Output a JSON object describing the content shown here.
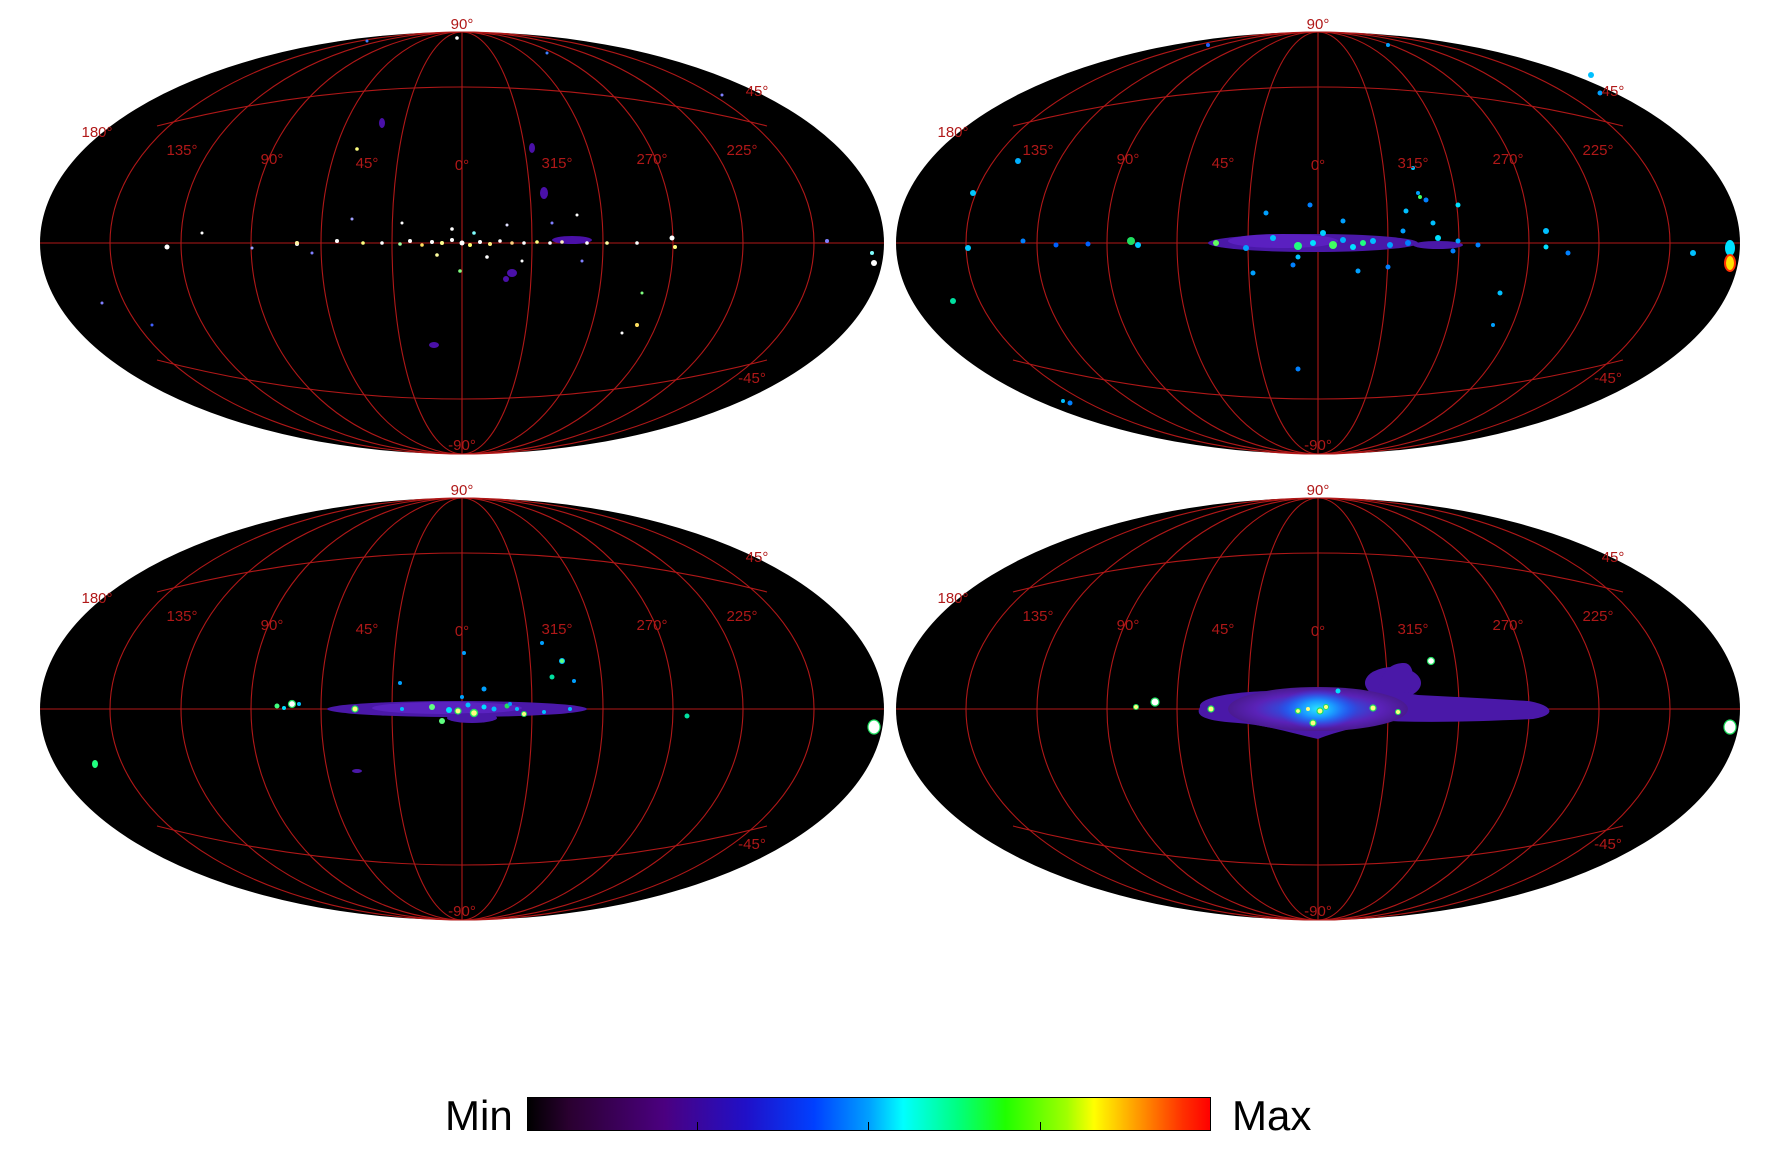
{
  "colorbar": {
    "min_label": "Min",
    "max_label": "Max"
  },
  "graticule": {
    "color": "#b01818",
    "lat_labels": {
      "north_pole": "90°",
      "north_mid": "45°",
      "south_mid": "-45°",
      "south_pole": "-90°"
    },
    "lon_labels": [
      "180°",
      "135°",
      "90°",
      "45°",
      "0°",
      "315°",
      "270°",
      "225°"
    ]
  },
  "panels": [
    {
      "id": "top-left"
    },
    {
      "id": "top-right"
    },
    {
      "id": "bottom-left"
    },
    {
      "id": "bottom-right"
    }
  ]
}
